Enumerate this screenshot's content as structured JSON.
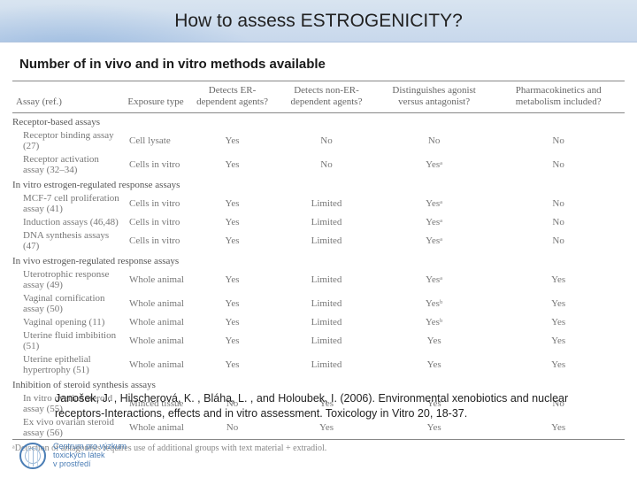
{
  "title": "How to assess ESTROGENICITY?",
  "subtitle": "Number of in vivo and in vitro methods available",
  "columns": [
    "Assay (ref.)",
    "Exposure type",
    "Detects ER-dependent agents?",
    "Detects non-ER-dependent agents?",
    "Distinguishes agonist versus antagonist?",
    "Pharmacokinetics and metabolism included?"
  ],
  "sections": [
    {
      "heading": "Receptor-based assays",
      "rows": [
        {
          "assay": "Receptor binding assay (27)",
          "exposure": "Cell lysate",
          "c1": "Yes",
          "c2": "No",
          "c3": "No",
          "c4": "No"
        },
        {
          "assay": "Receptor activation assay (32–34)",
          "exposure": "Cells in vitro",
          "c1": "Yes",
          "c2": "No",
          "c3": "Yesᵃ",
          "c4": "No"
        }
      ]
    },
    {
      "heading": "In vitro estrogen-regulated response assays",
      "rows": [
        {
          "assay": "MCF-7 cell proliferation assay (41)",
          "exposure": "Cells in vitro",
          "c1": "Yes",
          "c2": "Limited",
          "c3": "Yesᵃ",
          "c4": "No"
        },
        {
          "assay": "Induction assays (46,48)",
          "exposure": "Cells in vitro",
          "c1": "Yes",
          "c2": "Limited",
          "c3": "Yesᵃ",
          "c4": "No"
        },
        {
          "assay": "DNA synthesis assays (47)",
          "exposure": "Cells in vitro",
          "c1": "Yes",
          "c2": "Limited",
          "c3": "Yesᵃ",
          "c4": "No"
        }
      ]
    },
    {
      "heading": "In vivo estrogen-regulated response assays",
      "rows": [
        {
          "assay": "Uterotrophic response assay (49)",
          "exposure": "Whole animal",
          "c1": "Yes",
          "c2": "Limited",
          "c3": "Yesᵃ",
          "c4": "Yes"
        },
        {
          "assay": "Vaginal cornification assay (50)",
          "exposure": "Whole animal",
          "c1": "Yes",
          "c2": "Limited",
          "c3": "Yesᵇ",
          "c4": "Yes"
        },
        {
          "assay": "Vaginal opening (11)",
          "exposure": "Whole animal",
          "c1": "Yes",
          "c2": "Limited",
          "c3": "Yesᵇ",
          "c4": "Yes"
        },
        {
          "assay": "Uterine fluid imbibition (51)",
          "exposure": "Whole animal",
          "c1": "Yes",
          "c2": "Limited",
          "c3": "Yes",
          "c4": "Yes"
        },
        {
          "assay": "Uterine epithelial hypertrophy (51)",
          "exposure": "Whole animal",
          "c1": "Yes",
          "c2": "Limited",
          "c3": "Yes",
          "c4": "Yes"
        }
      ]
    },
    {
      "heading": "Inhibition of steroid synthesis assays",
      "rows": [
        {
          "assay": "In vitro ovarian steroid assay (55)",
          "exposure": "Minced tissue",
          "c1": "No",
          "c2": "Yes",
          "c3": "Yes",
          "c4": "No"
        },
        {
          "assay": "Ex vivo ovarian steroid assay (56)",
          "exposure": "Whole animal",
          "c1": "No",
          "c2": "Yes",
          "c3": "Yes",
          "c4": "Yes"
        }
      ]
    }
  ],
  "footnote": "ᵃDetection of antagonists requires use of additional groups with text material + extradiol.",
  "citation": "Janošek, J. , Hilscherová, K. , Bláha, L. , and Holoubek, I. (2006). Environmental xenobiotics and nuclear receptors-Interactions, effects and in vitro assessment. Toxicology in Vitro 20, 18-37.",
  "footer_org": "Centrum pro výzkum\ntoxických látek\nv prostředí"
}
